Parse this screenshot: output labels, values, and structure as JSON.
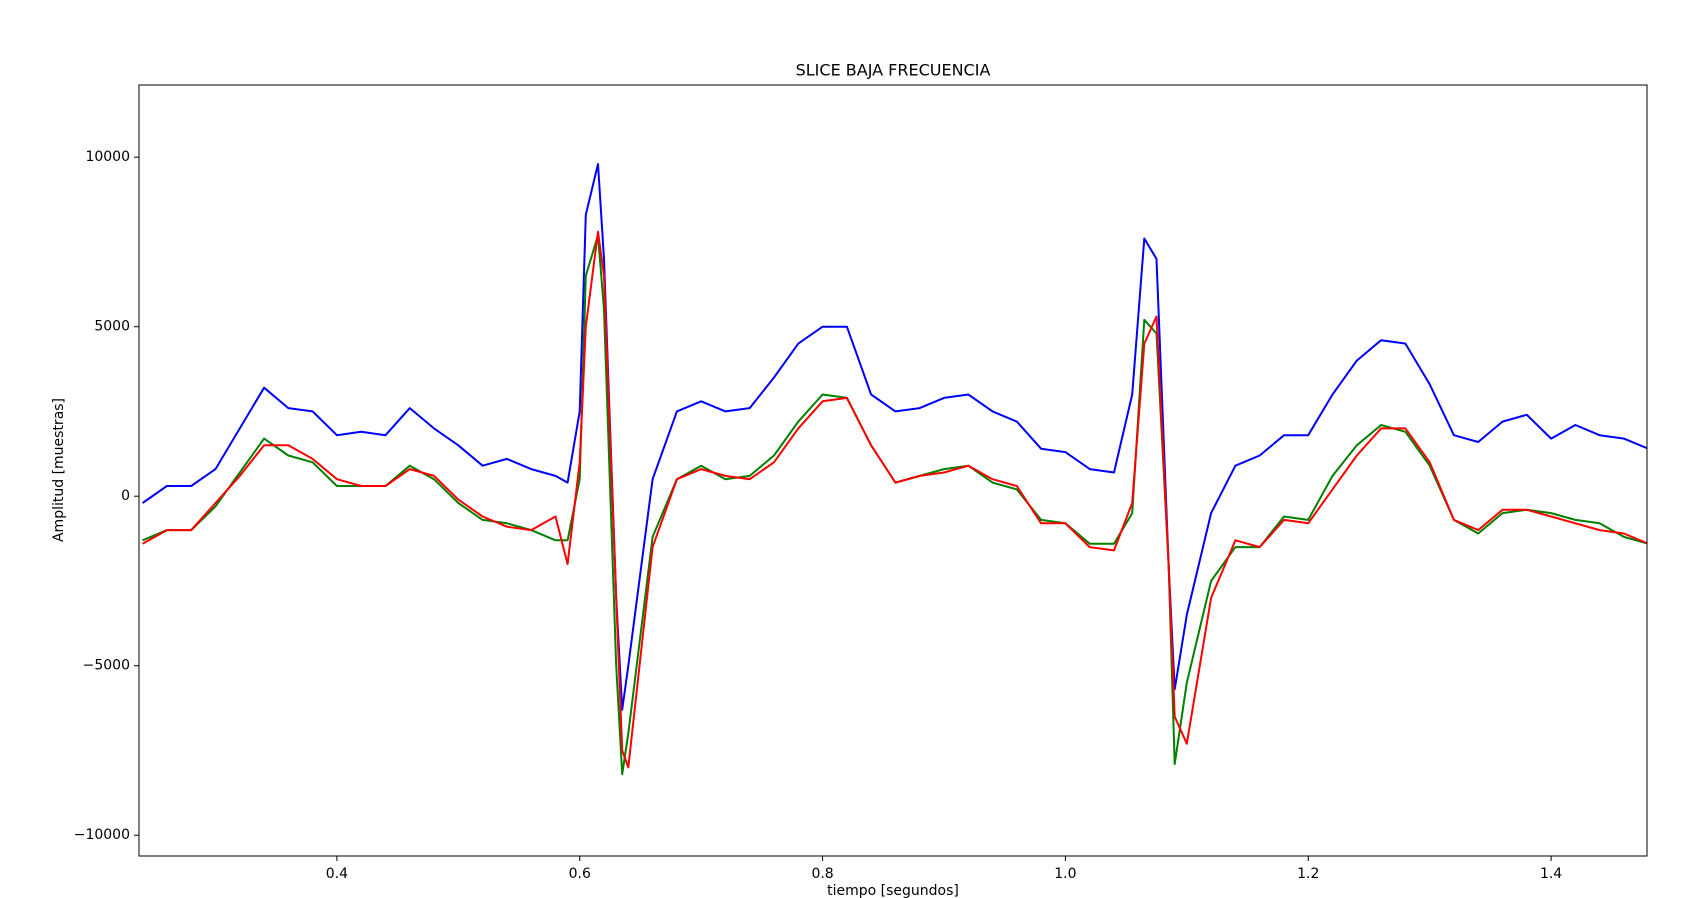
{
  "chart_data": {
    "type": "line",
    "title": "SLICE BAJA FRECUENCIA",
    "x_label": "tiempo [segundos]",
    "y_label": "Amplitud [muestras]",
    "x": [
      0.24,
      0.26,
      0.28,
      0.3,
      0.32,
      0.34,
      0.36,
      0.38,
      0.4,
      0.42,
      0.44,
      0.46,
      0.48,
      0.5,
      0.52,
      0.54,
      0.56,
      0.58,
      0.59,
      0.6,
      0.605,
      0.615,
      0.62,
      0.63,
      0.635,
      0.64,
      0.66,
      0.68,
      0.7,
      0.72,
      0.74,
      0.76,
      0.78,
      0.8,
      0.82,
      0.84,
      0.86,
      0.88,
      0.9,
      0.92,
      0.94,
      0.96,
      0.98,
      1.0,
      1.02,
      1.04,
      1.055,
      1.065,
      1.075,
      1.085,
      1.09,
      1.1,
      1.12,
      1.14,
      1.16,
      1.18,
      1.2,
      1.22,
      1.24,
      1.26,
      1.28,
      1.3,
      1.32,
      1.34,
      1.36,
      1.38,
      1.4,
      1.42,
      1.44,
      1.46,
      1.48
    ],
    "series": [
      {
        "color": "#0000ff",
        "values": [
          -200,
          300,
          300,
          800,
          2000,
          3200,
          2600,
          2500,
          1800,
          1900,
          1800,
          2600,
          2000,
          1500,
          900,
          1100,
          800,
          600,
          400,
          2500,
          8300,
          9800,
          7000,
          -3000,
          -6300,
          -5000,
          500,
          2500,
          2800,
          2500,
          2600,
          3500,
          4500,
          5000,
          5000,
          3000,
          2500,
          2600,
          2900,
          3000,
          2500,
          2200,
          1400,
          1300,
          800,
          700,
          3000,
          7600,
          7000,
          -2000,
          -5700,
          -3500,
          -500,
          900,
          1200,
          1800,
          1800,
          3000,
          4000,
          4600,
          4500,
          3300,
          1800,
          1600,
          2200,
          2400,
          1700,
          2100,
          1800,
          1700,
          1400
        ]
      },
      {
        "color": "#008000",
        "values": [
          -1300,
          -1000,
          -1000,
          -300,
          700,
          1700,
          1200,
          1000,
          300,
          300,
          300,
          900,
          500,
          -200,
          -700,
          -800,
          -1000,
          -1300,
          -1300,
          500,
          6500,
          7700,
          5500,
          -5000,
          -8200,
          -7000,
          -1200,
          500,
          900,
          500,
          600,
          1200,
          2200,
          3000,
          2900,
          1500,
          400,
          600,
          800,
          900,
          400,
          200,
          -700,
          -800,
          -1400,
          -1400,
          -500,
          5200,
          4800,
          -2000,
          -7900,
          -5500,
          -2500,
          -1500,
          -1500,
          -600,
          -700,
          600,
          1500,
          2100,
          1900,
          900,
          -700,
          -1100,
          -500,
          -400,
          -500,
          -700,
          -800,
          -1200,
          -1400
        ]
      },
      {
        "color": "#ff0000",
        "values": [
          -1400,
          -1000,
          -1000,
          -200,
          600,
          1500,
          1500,
          1100,
          500,
          300,
          300,
          800,
          600,
          -100,
          -600,
          -900,
          -1000,
          -600,
          -2000,
          1000,
          5000,
          7800,
          6500,
          -3000,
          -7500,
          -8000,
          -1500,
          500,
          800,
          600,
          500,
          1000,
          2000,
          2800,
          2900,
          1500,
          400,
          600,
          700,
          900,
          500,
          300,
          -800,
          -800,
          -1500,
          -1600,
          -200,
          4500,
          5300,
          -2000,
          -6500,
          -7300,
          -3000,
          -1300,
          -1500,
          -700,
          -800,
          200,
          1200,
          2000,
          2000,
          1000,
          -700,
          -1000,
          -400,
          -400,
          -600,
          -800,
          -1000,
          -1100,
          -1400
        ]
      }
    ],
    "xlim": [
      0.237,
      1.479
    ],
    "ylim": [
      -10613,
      12129
    ],
    "xticks": [
      0.4,
      0.6,
      0.8,
      {
        "value": 1.0,
        "label": "1.0"
      },
      1.2,
      1.4
    ],
    "yticks": [
      {
        "value": -10000,
        "label": "−10000"
      },
      {
        "value": -5000,
        "label": "−5000"
      },
      0,
      5000,
      10000
    ]
  }
}
